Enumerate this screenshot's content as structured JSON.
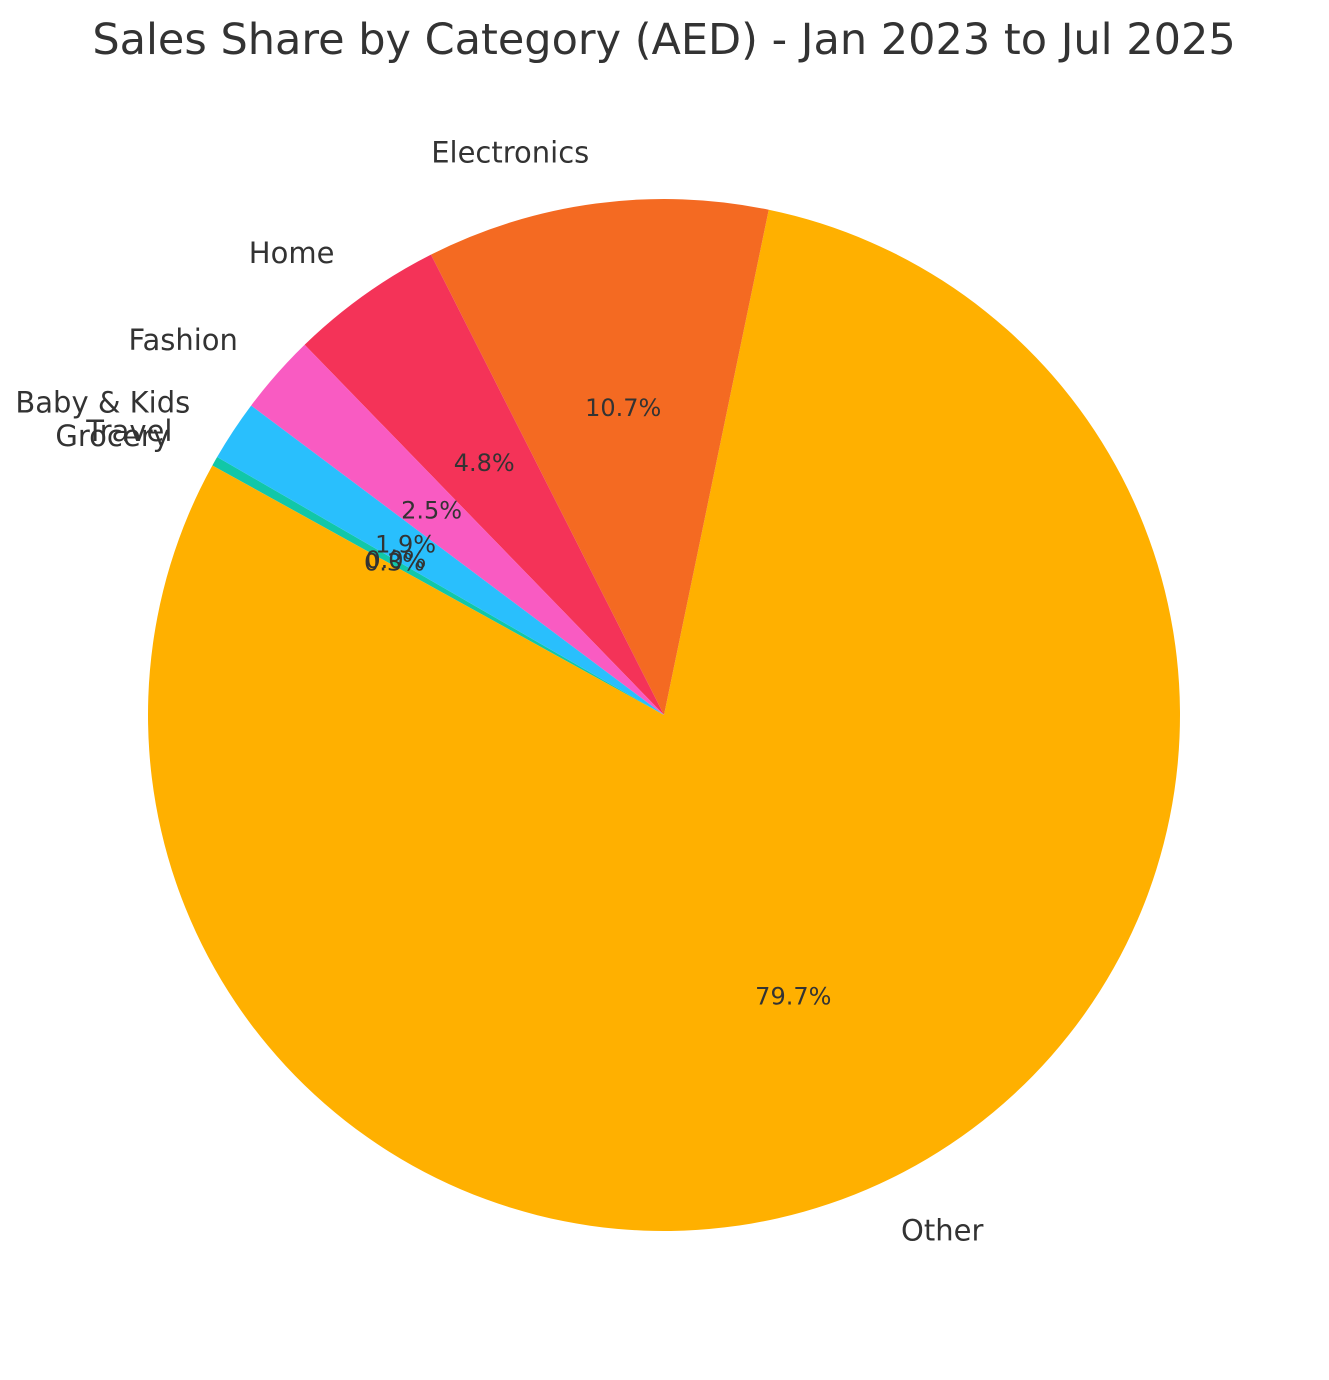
{
  "chart_data": {
    "type": "pie",
    "title": "Sales Share by Category (AED) - Jan 2023 to Jul 2025",
    "start_angle_deg": 150,
    "direction": "counterclockwise",
    "slices": [
      {
        "label": "Travel",
        "value": 0.0,
        "pct_label": "0.0%",
        "color": "#0e9e8e"
      },
      {
        "label": "Grocery",
        "value": 0.3,
        "pct_label": "0.3%",
        "color": "#11c7a8"
      },
      {
        "label": "Other",
        "value": 79.7,
        "pct_label": "79.7%",
        "color": "#ffb000"
      },
      {
        "label": "Electronics",
        "value": 10.7,
        "pct_label": "10.7%",
        "color": "#f46a22"
      },
      {
        "label": "Home",
        "value": 4.8,
        "pct_label": "4.8%",
        "color": "#f43358"
      },
      {
        "label": "Fashion",
        "value": 2.5,
        "pct_label": "2.5%",
        "color": "#f95bc2"
      },
      {
        "label": "Baby & Kids",
        "value": 1.9,
        "pct_label": "1.9%",
        "color": "#29bffd"
      }
    ]
  }
}
